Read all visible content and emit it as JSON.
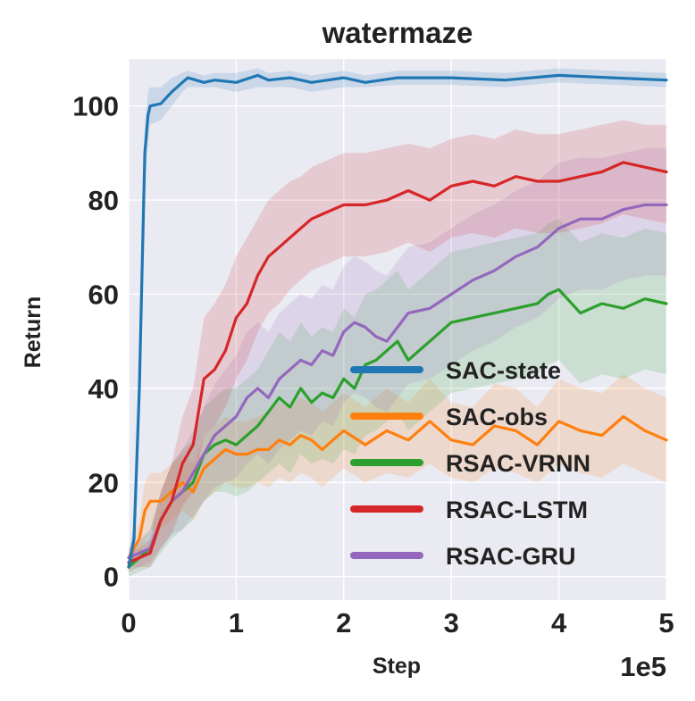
{
  "chart_data": {
    "type": "line",
    "title": "watermaze",
    "xlabel": "Step",
    "ylabel": "Return",
    "x_offset_label": "1e5",
    "xlim": [
      0,
      5
    ],
    "ylim": [
      -5,
      110
    ],
    "xticks": [
      0,
      1,
      2,
      3,
      4,
      5
    ],
    "yticks": [
      0,
      20,
      40,
      60,
      80,
      100
    ],
    "grid": true,
    "legend_position": "lower-right",
    "series": [
      {
        "name": "SAC-state",
        "color": "#1f77b4",
        "x": [
          0,
          0.05,
          0.1,
          0.15,
          0.18,
          0.2,
          0.3,
          0.4,
          0.5,
          0.55,
          0.7,
          0.8,
          1.0,
          1.2,
          1.3,
          1.5,
          1.7,
          2.0,
          2.2,
          2.5,
          3.0,
          3.5,
          4.0,
          4.5,
          5.0
        ],
        "y": [
          2,
          8,
          40,
          90,
          98,
          100,
          100.5,
          103,
          105,
          106,
          105,
          105.5,
          105,
          106.5,
          105.5,
          106,
          105,
          106,
          105,
          106,
          106,
          105.5,
          106.5,
          106,
          105.5
        ],
        "band_low": [
          1,
          4,
          30,
          82,
          92,
          96,
          97,
          100,
          103,
          104,
          104,
          104,
          103,
          104,
          104,
          104,
          103,
          104,
          104,
          104.5,
          104.5,
          104,
          105,
          104.5,
          104
        ],
        "band_high": [
          4,
          12,
          50,
          96,
          103,
          104,
          104,
          106,
          107,
          107.5,
          106.5,
          107,
          107,
          108,
          107,
          107.5,
          106.5,
          107.5,
          106.5,
          107.5,
          107.5,
          107,
          108,
          107.5,
          107
        ]
      },
      {
        "name": "SAC-obs",
        "color": "#ff7f0e",
        "x": [
          0,
          0.1,
          0.15,
          0.2,
          0.3,
          0.4,
          0.5,
          0.6,
          0.7,
          0.8,
          0.9,
          1.0,
          1.1,
          1.2,
          1.3,
          1.4,
          1.5,
          1.6,
          1.7,
          1.8,
          1.9,
          2.0,
          2.2,
          2.4,
          2.6,
          2.8,
          3.0,
          3.2,
          3.4,
          3.6,
          3.8,
          4.0,
          4.2,
          4.4,
          4.6,
          4.8,
          5.0
        ],
        "y": [
          4,
          8,
          14,
          16,
          16,
          18,
          20,
          18,
          23,
          25,
          27,
          26,
          26,
          27,
          27,
          29,
          28,
          30,
          29,
          27,
          29,
          31,
          28,
          31,
          29,
          33,
          29,
          28,
          32,
          31,
          28,
          33,
          31,
          30,
          34,
          31,
          29
        ],
        "band_low": [
          2,
          4,
          8,
          10,
          10,
          12,
          14,
          12,
          16,
          18,
          20,
          19,
          19,
          20,
          19,
          21,
          20,
          22,
          21,
          19,
          21,
          23,
          20,
          22,
          21,
          24,
          21,
          20,
          23,
          22,
          20,
          24,
          22,
          21,
          24,
          22,
          20
        ],
        "band_high": [
          6,
          12,
          20,
          22,
          22,
          24,
          26,
          24,
          30,
          32,
          34,
          33,
          33,
          34,
          35,
          37,
          36,
          38,
          37,
          35,
          37,
          39,
          36,
          40,
          37,
          42,
          37,
          36,
          41,
          40,
          36,
          42,
          40,
          39,
          43,
          40,
          38
        ]
      },
      {
        "name": "RSAC-VRNN",
        "color": "#2ca02c",
        "x": [
          0,
          0.1,
          0.2,
          0.3,
          0.4,
          0.5,
          0.6,
          0.7,
          0.8,
          0.9,
          1.0,
          1.1,
          1.2,
          1.3,
          1.4,
          1.5,
          1.6,
          1.7,
          1.8,
          1.9,
          2.0,
          2.1,
          2.2,
          2.3,
          2.4,
          2.5,
          2.6,
          2.7,
          2.8,
          2.9,
          3.0,
          3.2,
          3.4,
          3.6,
          3.8,
          3.9,
          4.0,
          4.2,
          4.4,
          4.6,
          4.8,
          5.0
        ],
        "y": [
          2,
          4,
          6,
          12,
          16,
          18,
          20,
          26,
          28,
          29,
          28,
          30,
          32,
          35,
          38,
          36,
          40,
          37,
          39,
          38,
          42,
          40,
          45,
          46,
          48,
          50,
          46,
          48,
          50,
          52,
          54,
          55,
          56,
          57,
          58,
          60,
          61,
          56,
          58,
          57,
          59,
          58
        ],
        "band_low": [
          0,
          1,
          2,
          5,
          8,
          10,
          12,
          16,
          18,
          18,
          17,
          18,
          20,
          22,
          24,
          22,
          26,
          24,
          25,
          24,
          27,
          26,
          30,
          31,
          33,
          35,
          31,
          33,
          35,
          37,
          39,
          40,
          41,
          42,
          43,
          45,
          46,
          41,
          43,
          42,
          44,
          43
        ],
        "band_high": [
          4,
          7,
          10,
          18,
          24,
          27,
          29,
          36,
          38,
          40,
          40,
          42,
          44,
          48,
          52,
          50,
          54,
          51,
          53,
          52,
          57,
          55,
          60,
          61,
          63,
          65,
          61,
          63,
          65,
          67,
          69,
          70,
          71,
          72,
          73,
          75,
          76,
          71,
          73,
          72,
          74,
          73
        ]
      },
      {
        "name": "RSAC-LSTM",
        "color": "#d62728",
        "x": [
          0,
          0.1,
          0.2,
          0.3,
          0.4,
          0.5,
          0.6,
          0.7,
          0.8,
          0.9,
          1.0,
          1.1,
          1.2,
          1.3,
          1.4,
          1.5,
          1.6,
          1.7,
          1.8,
          1.9,
          2.0,
          2.2,
          2.4,
          2.6,
          2.8,
          3.0,
          3.2,
          3.4,
          3.6,
          3.8,
          4.0,
          4.2,
          4.4,
          4.6,
          4.8,
          5.0
        ],
        "y": [
          3,
          4,
          5,
          12,
          16,
          24,
          28,
          42,
          44,
          48,
          55,
          58,
          64,
          68,
          70,
          72,
          74,
          76,
          77,
          78,
          79,
          79,
          80,
          82,
          80,
          83,
          84,
          83,
          85,
          84,
          84,
          85,
          86,
          88,
          87,
          86
        ],
        "band_low": [
          1,
          2,
          2,
          6,
          9,
          15,
          18,
          30,
          32,
          36,
          42,
          46,
          52,
          56,
          58,
          61,
          63,
          65,
          66,
          67,
          68,
          68,
          69,
          71,
          69,
          72,
          73,
          72,
          74,
          73,
          73,
          74,
          75,
          77,
          76,
          75
        ],
        "band_high": [
          5,
          6,
          8,
          18,
          24,
          34,
          40,
          55,
          58,
          62,
          68,
          72,
          76,
          80,
          82,
          84,
          85,
          87,
          88,
          89,
          90,
          90,
          91,
          92,
          91,
          93,
          94,
          93,
          95,
          94,
          94,
          95,
          96,
          97,
          96,
          96
        ]
      },
      {
        "name": "RSAC-GRU",
        "color": "#9467bd",
        "x": [
          0,
          0.1,
          0.2,
          0.3,
          0.4,
          0.5,
          0.6,
          0.7,
          0.8,
          0.9,
          1.0,
          1.1,
          1.2,
          1.3,
          1.4,
          1.5,
          1.6,
          1.7,
          1.8,
          1.9,
          2.0,
          2.1,
          2.2,
          2.3,
          2.4,
          2.6,
          2.8,
          3.0,
          3.2,
          3.4,
          3.6,
          3.8,
          4.0,
          4.2,
          4.4,
          4.6,
          4.8,
          5.0
        ],
        "y": [
          4,
          5,
          6,
          12,
          16,
          18,
          22,
          26,
          30,
          32,
          34,
          38,
          40,
          38,
          42,
          44,
          46,
          45,
          48,
          47,
          52,
          54,
          53,
          51,
          50,
          56,
          57,
          60,
          63,
          65,
          68,
          70,
          74,
          76,
          76,
          78,
          79,
          79
        ],
        "band_low": [
          2,
          2,
          3,
          6,
          9,
          10,
          13,
          16,
          19,
          20,
          21,
          24,
          26,
          24,
          27,
          29,
          31,
          30,
          33,
          32,
          37,
          39,
          38,
          36,
          35,
          41,
          42,
          45,
          48,
          50,
          53,
          55,
          59,
          61,
          61,
          63,
          64,
          64
        ],
        "band_high": [
          6,
          8,
          10,
          18,
          24,
          27,
          31,
          36,
          41,
          44,
          47,
          52,
          54,
          52,
          56,
          58,
          60,
          59,
          62,
          61,
          66,
          68,
          67,
          65,
          64,
          70,
          71,
          74,
          77,
          79,
          82,
          84,
          88,
          89,
          89,
          90,
          91,
          91
        ]
      }
    ]
  }
}
